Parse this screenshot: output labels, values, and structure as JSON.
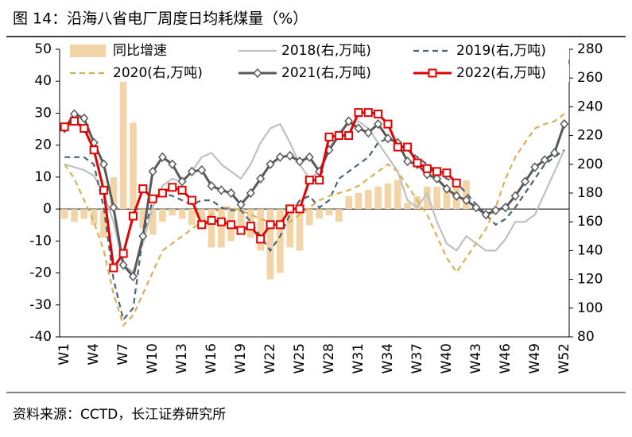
{
  "chart_data": {
    "type": "bar-line",
    "title": "图 14：沿海八省电厂周度日均耗煤量（%）",
    "source": "资料来源：CCTD，长江证券研究所",
    "categories": [
      "W1",
      null,
      null,
      "W4",
      null,
      null,
      "W7",
      null,
      null,
      "W10",
      null,
      null,
      "W13",
      null,
      null,
      "W16",
      null,
      null,
      "W19",
      null,
      null,
      "W22",
      null,
      null,
      "W25",
      null,
      null,
      "W28",
      null,
      null,
      "W31",
      null,
      null,
      "W34",
      null,
      null,
      "W37",
      null,
      null,
      "W40",
      null,
      null,
      "W43",
      null,
      null,
      "W46",
      null,
      null,
      "W49",
      null,
      null,
      "W52"
    ],
    "ylim": [
      -40,
      50
    ],
    "yticks": [
      -40,
      -30,
      -20,
      -10,
      0,
      10,
      20,
      30,
      40,
      50
    ],
    "y2lim": [
      80,
      280
    ],
    "y2ticks": [
      80,
      100,
      120,
      140,
      160,
      180,
      200,
      220,
      240,
      260,
      280
    ],
    "series": [
      {
        "name": "同比增速",
        "type": "bar",
        "color": "#f2d4a6",
        "values": [
          -3,
          -4,
          -3,
          -5,
          -9,
          10,
          43,
          27,
          -6,
          -8,
          -4,
          -2,
          -3,
          -5,
          -4,
          -12,
          -12,
          -10,
          -8,
          -9,
          -13,
          -22,
          -20,
          -12,
          -13,
          -5,
          -3,
          -2,
          -4,
          4,
          5,
          6,
          7,
          8,
          9,
          2,
          4,
          7,
          7,
          6,
          8,
          9,
          null,
          null,
          null,
          null,
          null,
          null,
          null,
          null,
          null,
          null
        ]
      },
      {
        "name": "2018(右,万吨)",
        "type": "line",
        "axis": "y2",
        "color": "#c0c0c0",
        "dash": "solid",
        "marker": "none",
        "values": [
          200,
          198,
          196,
          192,
          180,
          160,
          130,
          125,
          145,
          170,
          185,
          190,
          188,
          195,
          205,
          208,
          200,
          195,
          190,
          200,
          215,
          225,
          228,
          215,
          200,
          190,
          195,
          210,
          222,
          228,
          230,
          225,
          215,
          205,
          195,
          175,
          170,
          180,
          160,
          145,
          140,
          150,
          145,
          140,
          140,
          148,
          160,
          160,
          165,
          180,
          195,
          210
        ]
      },
      {
        "name": "2019(右,万吨)",
        "type": "line",
        "axis": "y2",
        "color": "#47657c",
        "dash": "dashed",
        "marker": "none",
        "values": [
          205,
          205,
          205,
          200,
          170,
          120,
          92,
          100,
          150,
          175,
          180,
          178,
          175,
          172,
          175,
          175,
          170,
          168,
          168,
          160,
          150,
          140,
          150,
          165,
          175,
          178,
          170,
          175,
          190,
          195,
          200,
          205,
          215,
          218,
          215,
          210,
          205,
          200,
          195,
          190,
          187,
          180,
          172,
          165,
          158,
          162,
          170,
          180,
          190,
          200,
          205,
          210
        ]
      },
      {
        "name": "2020(右,万吨)",
        "type": "line",
        "axis": "y2",
        "color": "#d7b05a",
        "dash": "dashed",
        "marker": "none",
        "values": [
          200,
          190,
          175,
          160,
          140,
          110,
          88,
          95,
          110,
          125,
          140,
          145,
          150,
          155,
          160,
          165,
          170,
          170,
          168,
          165,
          162,
          160,
          158,
          160,
          165,
          170,
          175,
          178,
          180,
          182,
          185,
          190,
          195,
          200,
          195,
          185,
          175,
          165,
          150,
          135,
          125,
          135,
          145,
          155,
          170,
          190,
          205,
          215,
          225,
          228,
          230,
          235
        ]
      },
      {
        "name": "2021(右,万吨)",
        "type": "line",
        "axis": "y2",
        "color": "#595959",
        "dash": "solid",
        "marker": "diamond",
        "values": [
          225,
          235,
          232,
          215,
          200,
          170,
          130,
          122,
          150,
          195,
          205,
          200,
          188,
          195,
          196,
          185,
          182,
          180,
          172,
          180,
          190,
          200,
          205,
          206,
          202,
          205,
          195,
          210,
          220,
          230,
          225,
          222,
          228,
          218,
          215,
          202,
          200,
          193,
          190,
          183,
          178,
          175,
          170,
          165,
          168,
          170,
          178,
          188,
          198,
          203,
          208,
          228
        ]
      },
      {
        "name": "2022(右,万吨)",
        "type": "line",
        "axis": "y2",
        "color": "#e00000",
        "dash": "solid",
        "marker": "square",
        "values": [
          226,
          230,
          225,
          210,
          182,
          128,
          138,
          164,
          183,
          176,
          180,
          184,
          182,
          175,
          158,
          161,
          160,
          158,
          154,
          157,
          148,
          158,
          158,
          169,
          169,
          189,
          189,
          219,
          220,
          220,
          236,
          236,
          235,
          228,
          212,
          212,
          201,
          197,
          195,
          194,
          187,
          null,
          null,
          null,
          null,
          null,
          null,
          null,
          null,
          null,
          null,
          null
        ]
      }
    ]
  }
}
